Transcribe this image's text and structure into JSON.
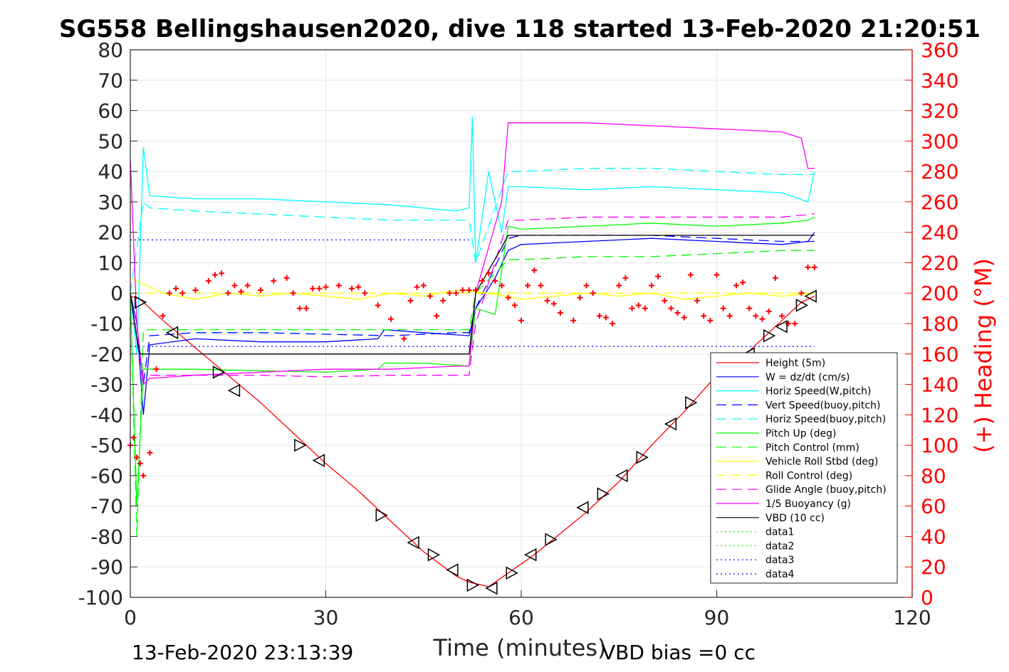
{
  "chart_data": {
    "type": "line",
    "title": "SG558 Bellingshausen2020, dive 118 started 13-Feb-2020 21:20:51",
    "xlabel": "Time (minutes)",
    "ylabel_right": "(+) Heading (°M)",
    "xlim": [
      0,
      120
    ],
    "ylim": [
      -100,
      80
    ],
    "ylim_right": [
      0,
      360
    ],
    "x_ticks": [
      0,
      30,
      60,
      90,
      120
    ],
    "y_ticks": [
      -100,
      -90,
      -80,
      -70,
      -60,
      -50,
      -40,
      -30,
      -20,
      -10,
      0,
      10,
      20,
      30,
      40,
      50,
      60,
      70,
      80
    ],
    "y_right_ticks": [
      0,
      20,
      40,
      60,
      80,
      100,
      120,
      140,
      160,
      180,
      200,
      220,
      240,
      260,
      280,
      300,
      320,
      340,
      360
    ],
    "grid": true,
    "legend_position": "lower-right",
    "footer_left": "13-Feb-2020 23:13:39",
    "footer_right": "VBD bias =0 cc",
    "series": [
      {
        "name": "Height (5m)",
        "color": "#ff0000",
        "style": "solid",
        "x": [
          0,
          1.5,
          5,
          10,
          15,
          20,
          25,
          30,
          35,
          40,
          45,
          50,
          52,
          55,
          58,
          62,
          66,
          70,
          75,
          80,
          85,
          90,
          95,
          100,
          103,
          105
        ],
        "y": [
          -1,
          -2,
          -9,
          -18,
          -27,
          -36,
          -46,
          -56,
          -65,
          -75,
          -85,
          -93,
          -95,
          -96.5,
          -92,
          -86,
          -79,
          -72,
          -62,
          -50,
          -39,
          -27,
          -19,
          -9,
          -3,
          -1
        ]
      },
      {
        "name": "W = dz/dt (cm/s)",
        "color": "#0000ff",
        "style": "solid",
        "x": [
          0,
          1,
          2,
          3,
          10,
          20,
          30,
          38,
          39,
          45,
          52,
          53,
          56,
          58,
          60,
          70,
          80,
          90,
          100,
          104,
          105
        ],
        "y": [
          0,
          -10,
          -40,
          -17,
          -15,
          -16,
          -16,
          -15,
          -12,
          -13,
          -14,
          -5,
          5,
          14,
          16,
          17,
          18,
          17,
          16,
          17,
          20
        ]
      },
      {
        "name": "Horiz Speed(W,pitch)",
        "color": "#00ffff",
        "style": "solid",
        "x": [
          0,
          1,
          2,
          3,
          10,
          20,
          30,
          40,
          50,
          52,
          52.5,
          53,
          55,
          57,
          58,
          60,
          70,
          80,
          90,
          100,
          104,
          105
        ],
        "y": [
          0,
          -20,
          48,
          32,
          31,
          31,
          30,
          29,
          27,
          28,
          58,
          10,
          40,
          20,
          35,
          35,
          34,
          35,
          34,
          33,
          30,
          40
        ]
      },
      {
        "name": "Vert Speed(buoy,pitch)",
        "color": "#0000ff",
        "style": "dashed",
        "x": [
          0,
          2,
          3,
          10,
          20,
          30,
          40,
          50,
          52,
          53,
          58,
          60,
          70,
          80,
          90,
          100,
          105
        ],
        "y": [
          0,
          -30,
          -14,
          -13,
          -13,
          -13.5,
          -14,
          -13,
          -13,
          -5,
          18,
          19,
          19,
          19,
          18,
          17,
          17
        ]
      },
      {
        "name": "Horiz Speed(buoy,pitch)",
        "color": "#00ffff",
        "style": "dashed",
        "x": [
          0,
          2,
          3,
          10,
          20,
          30,
          40,
          50,
          52,
          53,
          58,
          60,
          70,
          80,
          90,
          100,
          105
        ],
        "y": [
          0,
          30,
          28,
          27,
          26,
          25,
          24,
          24,
          24,
          10,
          40,
          40,
          41,
          41,
          40,
          39,
          39
        ]
      },
      {
        "name": "Pitch Up (deg)",
        "color": "#00ff00",
        "style": "solid",
        "x": [
          0,
          1,
          2,
          3,
          10,
          20,
          30,
          38,
          39,
          45,
          52,
          53,
          56,
          58,
          60,
          70,
          80,
          90,
          100,
          104,
          105
        ],
        "y": [
          0,
          -70,
          -25,
          -25,
          -25,
          -25.5,
          -26,
          -25,
          -23,
          -23,
          -24,
          -5,
          -7,
          22,
          21,
          22,
          23,
          22,
          23,
          24,
          25
        ]
      },
      {
        "name": "Pitch Control (mm)",
        "color": "#00ff00",
        "style": "dashed",
        "x": [
          0,
          1,
          2,
          3,
          10,
          20,
          30,
          38,
          40,
          52,
          53,
          58,
          60,
          70,
          80,
          90,
          100,
          105
        ],
        "y": [
          0,
          -80,
          -12,
          -12,
          -12,
          -12,
          -12,
          -12,
          -12,
          -12,
          0,
          11,
          11,
          12,
          12,
          13,
          14,
          14
        ]
      },
      {
        "name": "Vehicle Roll Stbd (deg)",
        "color": "#ffff00",
        "style": "solid",
        "x": [
          0,
          5,
          10,
          15,
          20,
          25,
          30,
          35,
          40,
          45,
          50,
          55,
          60,
          65,
          70,
          75,
          80,
          85,
          90,
          95,
          100,
          105
        ],
        "y": [
          5,
          0,
          -2,
          0,
          -1,
          0,
          -1,
          -2,
          0,
          -1,
          1,
          0,
          -2,
          -1,
          0,
          -1,
          0,
          -2,
          -1,
          0,
          -1,
          0
        ]
      },
      {
        "name": "Roll Control (deg)",
        "color": "#ffff00",
        "style": "dashed",
        "x": [
          0,
          5,
          10,
          15,
          20,
          25,
          30,
          35,
          40,
          45,
          50,
          55,
          60,
          65,
          70,
          75,
          80,
          85,
          90,
          95,
          100,
          105
        ],
        "y": [
          0,
          0,
          0,
          0,
          0,
          0,
          0,
          0,
          0,
          0,
          0,
          0,
          0,
          0,
          0,
          0,
          0,
          0,
          0,
          0,
          0,
          0
        ]
      },
      {
        "name": "Glide Angle (buoy,pitch)",
        "color": "#ff00ff",
        "style": "dashed",
        "x": [
          0,
          2,
          3,
          10,
          20,
          30,
          40,
          50,
          52,
          53,
          58,
          60,
          70,
          80,
          90,
          100,
          105
        ],
        "y": [
          0,
          -28,
          -27,
          -27,
          -27,
          -27.5,
          -27,
          -27,
          -27,
          -10,
          24,
          24,
          25,
          25,
          25,
          25,
          26
        ]
      },
      {
        "name": "1/5 Buoyancy (g)",
        "color": "#ff00ff",
        "style": "solid",
        "x": [
          0,
          1,
          2,
          3,
          10,
          20,
          30,
          40,
          50,
          52,
          53,
          57,
          58,
          60,
          70,
          80,
          90,
          100,
          103,
          104,
          105
        ],
        "y": [
          44,
          -10,
          -30,
          -28,
          -27,
          -26,
          -25,
          -25,
          -24,
          -24,
          0,
          30,
          56,
          56,
          56,
          55,
          54,
          53,
          51,
          41,
          41
        ]
      },
      {
        "name": "VBD (10 cc)",
        "color": "#000000",
        "style": "solid",
        "x": [
          0,
          1,
          1.5,
          3,
          10,
          20,
          30,
          40,
          50,
          52,
          53,
          57,
          58,
          60,
          70,
          80,
          90,
          100,
          105
        ],
        "y": [
          0,
          -15,
          -20,
          -20,
          -20,
          -20,
          -20,
          -20,
          -20,
          -20,
          0,
          15,
          19,
          19,
          19,
          19,
          19,
          19,
          19
        ]
      },
      {
        "name": "data1",
        "color": "#00ff00",
        "style": "dotted",
        "x": [],
        "y": []
      },
      {
        "name": "data2",
        "color": "#00ff00",
        "style": "dotted",
        "x": [],
        "y": []
      },
      {
        "name": "data3",
        "color": "#0000ff",
        "style": "dotted",
        "x": [
          0,
          52
        ],
        "y": [
          17.5,
          17.5
        ]
      },
      {
        "name": "data4",
        "color": "#0000ff",
        "style": "dotted",
        "x": [
          0,
          105
        ],
        "y": [
          -17.5,
          -17.5
        ]
      }
    ],
    "heading_series": {
      "axis": "right",
      "color": "#ff0000",
      "marker": "+",
      "x": [
        0,
        0.5,
        1,
        1.5,
        2,
        3,
        4,
        5,
        6,
        7,
        8,
        10,
        12,
        13,
        14,
        15,
        16,
        17,
        18,
        20,
        22,
        24,
        25,
        26,
        27,
        28,
        29,
        30,
        32,
        34,
        35,
        36,
        38,
        40,
        42,
        43,
        44,
        45,
        46,
        47,
        48,
        49,
        50,
        51,
        52,
        53,
        54,
        55,
        56,
        57,
        58,
        59,
        60,
        61,
        62,
        63,
        64,
        65,
        66,
        68,
        69,
        70,
        71,
        72,
        73,
        74,
        75,
        76,
        77,
        78,
        79,
        80,
        81,
        82,
        83,
        84,
        85,
        86,
        87,
        88,
        89,
        90,
        91,
        92,
        93,
        94,
        95,
        96,
        97,
        98,
        99,
        100,
        101,
        102,
        103,
        104,
        105
      ],
      "y": [
        100,
        105,
        92,
        88,
        80,
        95,
        150,
        185,
        200,
        203,
        200,
        202,
        208,
        212,
        213,
        200,
        205,
        201,
        205,
        202,
        208,
        210,
        200,
        190,
        190,
        203,
        203,
        204,
        205,
        203,
        204,
        200,
        192,
        183,
        170,
        195,
        204,
        205,
        198,
        185,
        195,
        200,
        200,
        202,
        202,
        202,
        208,
        213,
        208,
        205,
        197,
        192,
        182,
        205,
        215,
        205,
        195,
        193,
        187,
        182,
        197,
        205,
        200,
        185,
        184,
        180,
        205,
        210,
        190,
        192,
        190,
        205,
        211,
        195,
        190,
        187,
        184,
        212,
        195,
        185,
        182,
        212,
        190,
        185,
        205,
        207,
        190,
        185,
        183,
        188,
        210,
        185,
        180,
        180,
        200,
        217,
        217
      ]
    },
    "waypoint_markers": {
      "marker": "triangle",
      "color": "#000000",
      "x": [
        1.5,
        6.5,
        13.5,
        16,
        26,
        29,
        38.5,
        43.5,
        46.5,
        49.5,
        52.5,
        55.5,
        58.5,
        61.5,
        64.5,
        69.5,
        72.5,
        75.5,
        78.5,
        83,
        86,
        95,
        98,
        100,
        103,
        104.5
      ],
      "y": [
        -3,
        -13,
        -26,
        -32,
        -50,
        -55,
        -73,
        -82,
        -86,
        -91,
        -96,
        -97,
        -92,
        -86,
        -81,
        -70.5,
        -66,
        -60,
        -54,
        -43,
        -36,
        -20,
        -14,
        -11,
        -4,
        -1
      ]
    }
  }
}
